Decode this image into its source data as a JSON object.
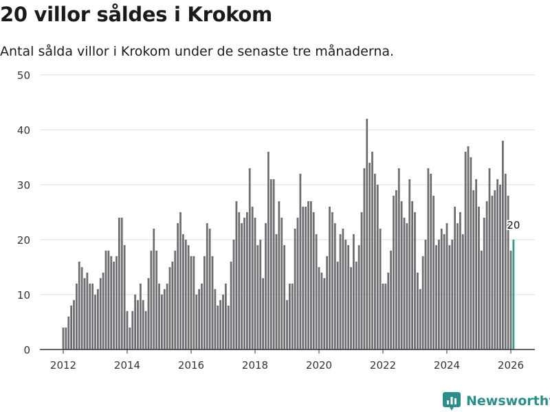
{
  "header": {
    "title": "20 villor såldes i Krokom",
    "subtitle": "Antal sålda villor i Krokom under de senaste tre månaderna."
  },
  "brand": {
    "name": "Newsworthy",
    "color": "#2a8f8a"
  },
  "colors": {
    "bar": "#6e6d72",
    "highlight": "#2a9d96",
    "grid": "#dddddd"
  },
  "chart_data": {
    "type": "bar",
    "title": "20 villor såldes i Krokom",
    "subtitle": "Antal sålda villor i Krokom under de senaste tre månaderna.",
    "xlabel": "",
    "ylabel": "",
    "ylim": [
      0,
      50
    ],
    "y_ticks": [
      0,
      10,
      20,
      30,
      40,
      50
    ],
    "x_ticks": [
      2012,
      2014,
      2016,
      2018,
      2020,
      2022,
      2024,
      2026
    ],
    "grid": true,
    "start_month": "2012-01",
    "end_month": "2026-01",
    "highlight_label": "20",
    "values": [
      4,
      4,
      6,
      8,
      9,
      12,
      16,
      15,
      13,
      14,
      12,
      12,
      10,
      11,
      13,
      14,
      18,
      18,
      17,
      16,
      17,
      24,
      24,
      19,
      7,
      4,
      7,
      10,
      9,
      12,
      9,
      7,
      13,
      18,
      22,
      18,
      12,
      10,
      11,
      12,
      15,
      16,
      18,
      23,
      25,
      21,
      20,
      19,
      17,
      17,
      10,
      11,
      12,
      17,
      23,
      22,
      17,
      11,
      8,
      9,
      10,
      12,
      8,
      16,
      20,
      27,
      25,
      23,
      24,
      25,
      33,
      26,
      24,
      19,
      20,
      13,
      23,
      36,
      31,
      31,
      21,
      27,
      24,
      19,
      9,
      12,
      12,
      22,
      24,
      32,
      26,
      26,
      27,
      27,
      25,
      21,
      15,
      14,
      13,
      17,
      26,
      25,
      23,
      16,
      21,
      22,
      20,
      19,
      15,
      21,
      16,
      19,
      25,
      33,
      42,
      34,
      36,
      32,
      30,
      22,
      12,
      12,
      14,
      18,
      28,
      29,
      33,
      27,
      24,
      23,
      31,
      27,
      25,
      14,
      11,
      17,
      20,
      33,
      32,
      28,
      19,
      20,
      22,
      21,
      23,
      19,
      20,
      26,
      23,
      25,
      21,
      36,
      37,
      35,
      29,
      31,
      26,
      18,
      24,
      27,
      33,
      28,
      29,
      31,
      30,
      38,
      32,
      28,
      18,
      20
    ]
  }
}
